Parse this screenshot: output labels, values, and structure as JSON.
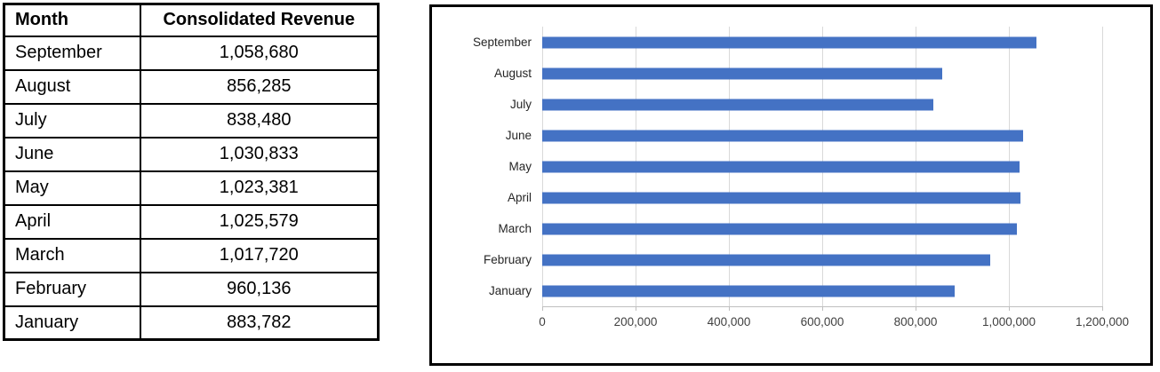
{
  "table": {
    "headers": [
      "Month",
      "Consolidated Revenue"
    ],
    "rows": [
      [
        "September",
        "1,058,680"
      ],
      [
        "August",
        "856,285"
      ],
      [
        "July",
        "838,480"
      ],
      [
        "June",
        "1,030,833"
      ],
      [
        "May",
        "1,023,381"
      ],
      [
        "April",
        "1,025,579"
      ],
      [
        "March",
        "1,017,720"
      ],
      [
        "February",
        "960,136"
      ],
      [
        "January",
        "883,782"
      ]
    ]
  },
  "chart_data": {
    "type": "bar",
    "orientation": "horizontal",
    "title": "",
    "xlabel": "",
    "ylabel": "",
    "categories": [
      "September",
      "August",
      "July",
      "June",
      "May",
      "April",
      "March",
      "February",
      "January"
    ],
    "values": [
      1058680,
      856285,
      838480,
      1030833,
      1023381,
      1025579,
      1017720,
      960136,
      883782
    ],
    "xlim": [
      0,
      1200000
    ],
    "xtick_labels": [
      "0",
      "200,000",
      "400,000",
      "600,000",
      "800,000",
      "1,000,000",
      "1,200,000"
    ],
    "grid": true,
    "legend": false,
    "colors": {
      "bar": "#4472C4",
      "gridline": "#D9D9D9",
      "axis_line": "#BFBFBF",
      "tick_label": "#404040",
      "category_label": "#262626",
      "frame_border": "#000000"
    }
  }
}
